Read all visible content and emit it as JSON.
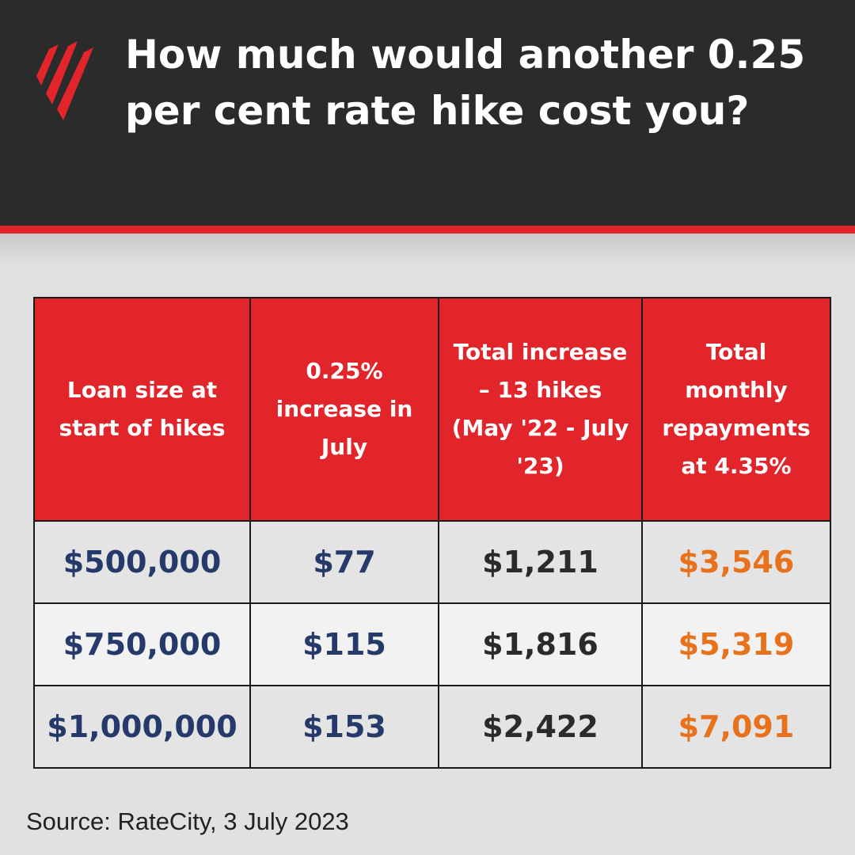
{
  "header": {
    "title": "How much would another 0.25 per cent rate hike cost you?"
  },
  "table": {
    "headers": [
      "Loan size at start of hikes",
      "0.25% increase in July",
      "Total increase – 13 hikes (May '22 - July '23)",
      "Total monthly repayments at 4.35%"
    ],
    "rows": [
      [
        "$500,000",
        "$77",
        "$1,211",
        "$3,546"
      ],
      [
        "$750,000",
        "$115",
        "$1,816",
        "$5,319"
      ],
      [
        "$1,000,000",
        "$153",
        "$2,422",
        "$7,091"
      ]
    ]
  },
  "footer": {
    "source": "Source: RateCity, 3 July 2023"
  }
}
